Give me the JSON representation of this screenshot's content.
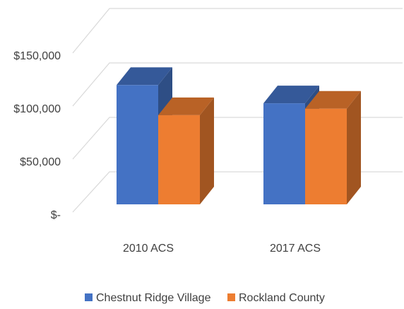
{
  "chart_data": {
    "type": "bar3d",
    "categories": [
      "2010 ACS",
      "2017 ACS"
    ],
    "series": [
      {
        "name": "Chestnut Ridge Village",
        "color": "#4472c4",
        "values": [
          111000,
          94000
        ]
      },
      {
        "name": "Rockland County",
        "color": "#ed7d31",
        "values": [
          83000,
          89000
        ]
      }
    ],
    "ylim": [
      0,
      150000
    ],
    "yticks": [
      {
        "value": 0,
        "label": "$-"
      },
      {
        "value": 50000,
        "label": "$50,000"
      },
      {
        "value": 100000,
        "label": "$100,000"
      },
      {
        "value": 150000,
        "label": "$150,000"
      }
    ],
    "grid": true,
    "legend": "bottom"
  }
}
